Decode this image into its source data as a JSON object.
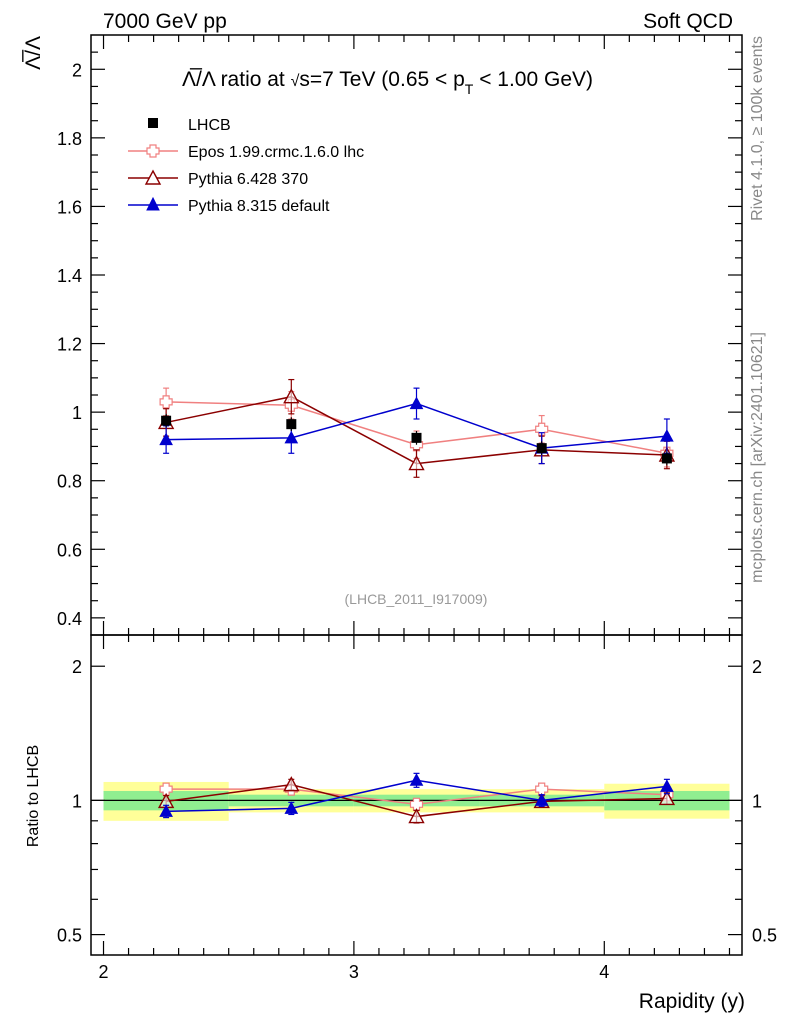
{
  "header": {
    "left": "7000 GeV pp",
    "right": "Soft QCD"
  },
  "side_labels": {
    "rivet": "Rivet 4.1.0, ≥ 100k events",
    "mcplots": "mcplots.cern.ch [arXiv:2401.10621]"
  },
  "chart_data": {
    "type": "line",
    "title": "Λ̅/Λ ratio at √s=7 TeV (0.65 < pT < 1.00 GeV)",
    "title_parts": {
      "lead": "Λ̅/Λ ratio at ",
      "sqrt": "√",
      "s": "s=7 TeV (0.65 < p",
      "sub": "T",
      "tail": " < 1.00 GeV)"
    },
    "ylabel": "Λ̅/Λ",
    "xlabel": "Rapidity (y)",
    "ratio_ylabel": "Ratio to LHCB",
    "watermark": "(LHCB_2011_I917009)",
    "xlim": [
      1.95,
      4.55
    ],
    "ylim": [
      0.35,
      2.1
    ],
    "ratio_ylim": [
      0.45,
      2.35
    ],
    "x": [
      2.25,
      2.75,
      3.25,
      3.75,
      4.25
    ],
    "bin_edges": [
      2.0,
      2.5,
      3.0,
      3.5,
      4.0,
      4.5
    ],
    "x_ticks": [
      {
        "value": 2,
        "label": "2"
      },
      {
        "value": 3,
        "label": "3"
      },
      {
        "value": 4,
        "label": "4"
      }
    ],
    "y_ticks": [
      {
        "value": 0.4,
        "label": "0.4"
      },
      {
        "value": 0.6,
        "label": "0.6"
      },
      {
        "value": 0.8,
        "label": "0.8"
      },
      {
        "value": 1.0,
        "label": "1"
      },
      {
        "value": 1.2,
        "label": "1.2"
      },
      {
        "value": 1.4,
        "label": "1.4"
      },
      {
        "value": 1.6,
        "label": "1.6"
      },
      {
        "value": 1.8,
        "label": "1.8"
      },
      {
        "value": 2.0,
        "label": "2"
      }
    ],
    "ratio_y_ticks": [
      {
        "value": 0.5,
        "label": "0.5"
      },
      {
        "value": 1.0,
        "label": "1"
      },
      {
        "value": 2.0,
        "label": "2"
      }
    ],
    "data": {
      "name": "LHCB",
      "values": [
        0.975,
        0.965,
        0.925,
        0.895,
        0.865
      ],
      "errors": [
        0.02,
        0.02,
        0.02,
        0.02,
        0.02
      ],
      "band_inner": [
        0.05,
        0.03,
        0.03,
        0.03,
        0.05
      ],
      "band_outer": [
        0.1,
        0.06,
        0.06,
        0.06,
        0.09
      ],
      "color": "#000000"
    },
    "series": [
      {
        "name": "Epos 1.99.crmc.1.6.0 lhc",
        "values": [
          1.03,
          1.02,
          0.905,
          0.95,
          0.88
        ],
        "errors": [
          0.04,
          0.04,
          0.04,
          0.04,
          0.04
        ],
        "ratio": [
          1.06,
          1.06,
          0.98,
          1.06,
          1.03
        ],
        "ratio_errors": [
          0.03,
          0.03,
          0.03,
          0.03,
          0.03
        ],
        "color": "#f08080",
        "marker": "open-cross"
      },
      {
        "name": "Pythia 6.428 370",
        "values": [
          0.97,
          1.045,
          0.85,
          0.89,
          0.875
        ],
        "errors": [
          0.04,
          0.05,
          0.04,
          0.04,
          0.04
        ],
        "ratio": [
          0.995,
          1.085,
          0.92,
          0.995,
          1.01
        ],
        "ratio_errors": [
          0.03,
          0.03,
          0.03,
          0.03,
          0.03
        ],
        "color": "#8b0000",
        "marker": "open-triangle"
      },
      {
        "name": "Pythia 8.315 default",
        "values": [
          0.92,
          0.925,
          1.025,
          0.895,
          0.93
        ],
        "errors": [
          0.04,
          0.045,
          0.045,
          0.045,
          0.05
        ],
        "ratio": [
          0.945,
          0.96,
          1.11,
          1.0,
          1.075
        ],
        "ratio_errors": [
          0.03,
          0.03,
          0.04,
          0.03,
          0.04
        ],
        "color": "#0000cd",
        "marker": "filled-triangle"
      }
    ],
    "legend_position": "top-left",
    "band_colors": {
      "inner": "#90ee90",
      "outer": "#ffff99"
    }
  }
}
